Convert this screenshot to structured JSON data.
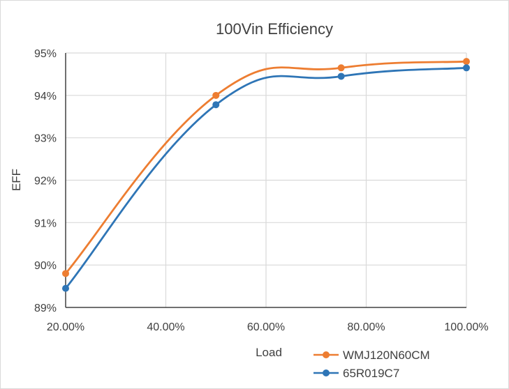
{
  "chart_data": {
    "type": "line",
    "title": "100Vin Efficiency",
    "xlabel": "Load",
    "ylabel": "EFF",
    "x": [
      0.2,
      0.5,
      0.75,
      1.0
    ],
    "x_ticks": [
      0.2,
      0.4,
      0.6,
      0.8,
      1.0
    ],
    "x_tick_labels": [
      "20.00%",
      "40.00%",
      "60.00%",
      "80.00%",
      "100.00%"
    ],
    "y_ticks": [
      0.89,
      0.9,
      0.91,
      0.92,
      0.93,
      0.94,
      0.95
    ],
    "y_tick_labels": [
      "89%",
      "90%",
      "91%",
      "92%",
      "93%",
      "94%",
      "95%"
    ],
    "xlim": [
      0.2,
      1.0
    ],
    "ylim": [
      0.89,
      0.95
    ],
    "grid": true,
    "legend_position": "bottom-right",
    "series": [
      {
        "name": "WMJ120N60CM",
        "color": "#ED7D31",
        "values": [
          0.898,
          0.94,
          0.9465,
          0.948
        ]
      },
      {
        "name": "65R019C7",
        "color": "#2E75B6",
        "values": [
          0.8945,
          0.9378,
          0.9445,
          0.9465
        ]
      }
    ]
  }
}
